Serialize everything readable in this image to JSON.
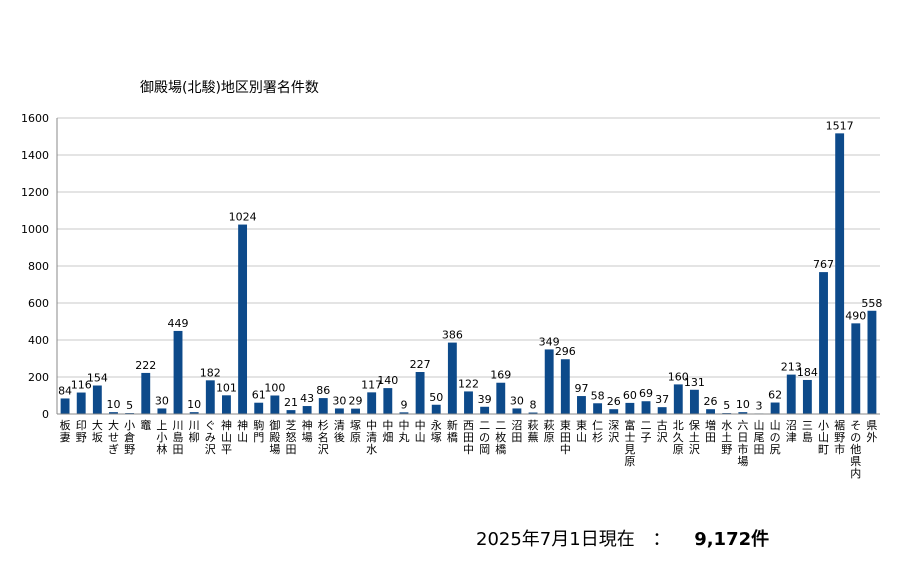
{
  "footer": {
    "date_text": "2025年7月1日現在",
    "separator": "：",
    "total": "9,172件"
  },
  "chart_data": {
    "type": "bar",
    "title": "御殿場(北駿)地区別署名件数",
    "xlabel": "",
    "ylabel": "",
    "ylim": [
      0,
      1600
    ],
    "yticks": [
      0,
      200,
      400,
      600,
      800,
      1000,
      1200,
      1400,
      1600
    ],
    "grid": true,
    "legend": "none",
    "bar_color": "#0d4a8a",
    "categories": [
      "板妻",
      "印野",
      "大坂",
      "大せぎ",
      "小倉野",
      "竈",
      "上小林",
      "川島田",
      "川柳",
      "ぐみ沢",
      "神山平",
      "神山",
      "駒門",
      "御殿場",
      "芝怒田",
      "神場",
      "杉名沢",
      "清後",
      "塚原",
      "中清水",
      "中畑",
      "中丸",
      "中山",
      "永塚",
      "新橋",
      "西田中",
      "二の岡",
      "二枚橋",
      "沼田",
      "萩蕪",
      "萩原",
      "東田中",
      "東山",
      "仁杉",
      "深沢",
      "富士見原",
      "二子",
      "古沢",
      "北久原",
      "保土沢",
      "増田",
      "水土野",
      "六日市場",
      "山尾田",
      "山の尻",
      "沼津",
      "三島",
      "小山町",
      "裾野市",
      "その他県内",
      "県外"
    ],
    "values": [
      84,
      116,
      154,
      10,
      5,
      222,
      30,
      449,
      10,
      182,
      101,
      1024,
      61,
      100,
      21,
      43,
      86,
      30,
      29,
      117,
      140,
      9,
      227,
      50,
      386,
      122,
      39,
      169,
      30,
      8,
      349,
      296,
      97,
      58,
      26,
      60,
      69,
      37,
      160,
      131,
      26,
      5,
      10,
      3,
      62,
      213,
      184,
      767,
      1517,
      490,
      558
    ]
  }
}
